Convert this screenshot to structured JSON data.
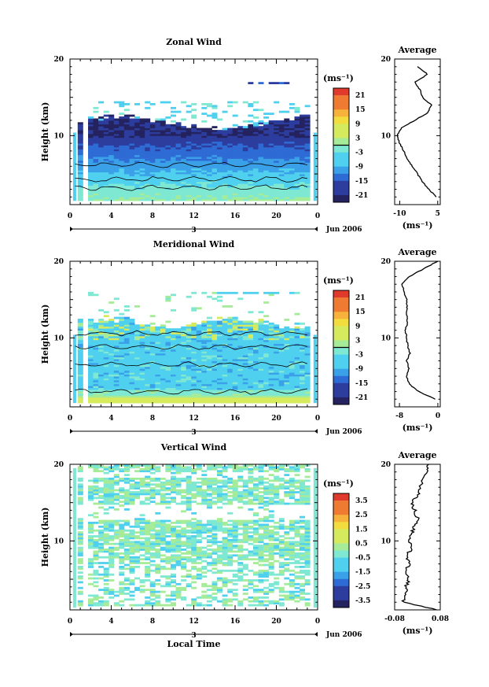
{
  "chart_data": [
    {
      "type": "heatmap",
      "title": "Zonal Wind",
      "ylabel": "Height (km)",
      "ylim": [
        1,
        20
      ],
      "yticks": [
        "20",
        "10"
      ],
      "xlim": [
        0,
        24
      ],
      "xticks": [
        "0",
        "4",
        "8",
        "12",
        "16",
        "20",
        "0"
      ],
      "day_label": "3",
      "date_label": "Jun 2006",
      "colorbar": {
        "unit": "(ms⁻¹)",
        "range": [
          -24,
          24
        ],
        "ticks": [
          "21",
          "15",
          "9",
          "3",
          "-3",
          "-9",
          "-15",
          "-21"
        ]
      },
      "average_profile": {
        "title": "Average",
        "xticks": [
          "-10",
          "5"
        ],
        "xlim": [
          -12,
          6
        ],
        "xlabel": "(ms⁻¹)",
        "height_km": [
          2,
          3,
          4,
          5,
          6,
          7,
          8,
          9,
          10,
          11,
          12,
          13,
          14,
          15,
          16,
          17,
          18,
          19
        ],
        "values": [
          4.5,
          1.5,
          -1,
          -3,
          -5,
          -7,
          -8.5,
          -10,
          -11,
          -9.5,
          -4,
          1,
          2.5,
          -1,
          -2,
          -4,
          1,
          -3
        ]
      }
    },
    {
      "type": "heatmap",
      "title": "Meridional Wind",
      "ylabel": "Height (km)",
      "ylim": [
        1,
        20
      ],
      "yticks": [
        "20",
        "10"
      ],
      "xlim": [
        0,
        24
      ],
      "xticks": [
        "0",
        "4",
        "8",
        "12",
        "16",
        "20",
        "0"
      ],
      "day_label": "3",
      "date_label": "Jun 2006",
      "colorbar": {
        "unit": "(ms⁻¹)",
        "range": [
          -24,
          24
        ],
        "ticks": [
          "21",
          "15",
          "9",
          "3",
          "-3",
          "-9",
          "-15",
          "-21"
        ]
      },
      "average_profile": {
        "title": "Average",
        "xticks": [
          "-8",
          "0"
        ],
        "xlim": [
          -9,
          0.5
        ],
        "xlabel": "(ms⁻¹)",
        "height_km": [
          2,
          3,
          4,
          5,
          6,
          7,
          8,
          9,
          10,
          11,
          12,
          13,
          14,
          15,
          16,
          17,
          18,
          19,
          20
        ],
        "values": [
          -0.5,
          -4,
          -6,
          -6.5,
          -6,
          -6.5,
          -5.8,
          -6.3,
          -6.5,
          -6.8,
          -6.3,
          -6.5,
          -6.4,
          -6.5,
          -7,
          -7.5,
          -6,
          -3,
          0
        ]
      }
    },
    {
      "type": "heatmap",
      "title": "Vertical Wind",
      "ylabel": "Height (km)",
      "xlabel": "Local Time",
      "ylim": [
        1,
        20
      ],
      "yticks": [
        "20",
        "10"
      ],
      "xlim": [
        0,
        24
      ],
      "xticks": [
        "0",
        "4",
        "8",
        "12",
        "16",
        "20",
        "0"
      ],
      "day_label": "3",
      "date_label": "Jun 2006",
      "colorbar": {
        "unit": "(ms⁻¹)",
        "range": [
          -4,
          4
        ],
        "ticks": [
          "3.5",
          "2.5",
          "1.5",
          "0.5",
          "-0.5",
          "-1.5",
          "-2.5",
          "-3.5"
        ]
      },
      "average_profile": {
        "title": "Average",
        "xticks": [
          "-0.08",
          "0.08"
        ],
        "xlim": [
          -0.08,
          0.08
        ],
        "xlabel": "(ms⁻¹)",
        "height_km": [
          1,
          2,
          3,
          4,
          5,
          6,
          7,
          8,
          9,
          10,
          11,
          12,
          13,
          14,
          15,
          16,
          17,
          18,
          19,
          20
        ],
        "values": [
          0.07,
          -0.05,
          -0.04,
          -0.04,
          -0.03,
          -0.04,
          -0.03,
          -0.04,
          -0.02,
          -0.03,
          -0.02,
          -0.01,
          0.0,
          -0.01,
          -0.02,
          0.0,
          0.01,
          0.02,
          0.03,
          0.04
        ]
      }
    }
  ]
}
